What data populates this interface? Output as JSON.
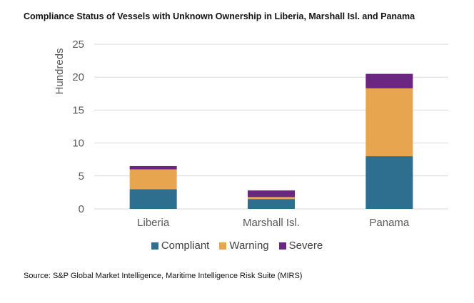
{
  "chart_data": {
    "type": "bar",
    "stacked": true,
    "title": "Compliance Status of Vessels with Unknown Ownership in Liberia, Marshall Isl. and Panama",
    "categories": [
      "Liberia",
      "Marshall Isl.",
      "Panama"
    ],
    "series": [
      {
        "name": "Compliant",
        "color": "#2e6e8e",
        "values": [
          3.0,
          1.5,
          8.0
        ]
      },
      {
        "name": "Warning",
        "color": "#e8a550",
        "values": [
          3.0,
          0.3,
          10.3
        ]
      },
      {
        "name": "Severe",
        "color": "#6a2680",
        "values": [
          0.5,
          1.0,
          2.2
        ]
      }
    ],
    "xlabel": "",
    "ylabel": "Hundreds",
    "ylim": [
      0,
      25
    ],
    "yticks": [
      0,
      5,
      10,
      15,
      20,
      25
    ],
    "grid": true,
    "legend": "bottom"
  },
  "source": "Source: S&P Global Market Intelligence, Maritime Intelligence Risk Suite (MIRS)"
}
